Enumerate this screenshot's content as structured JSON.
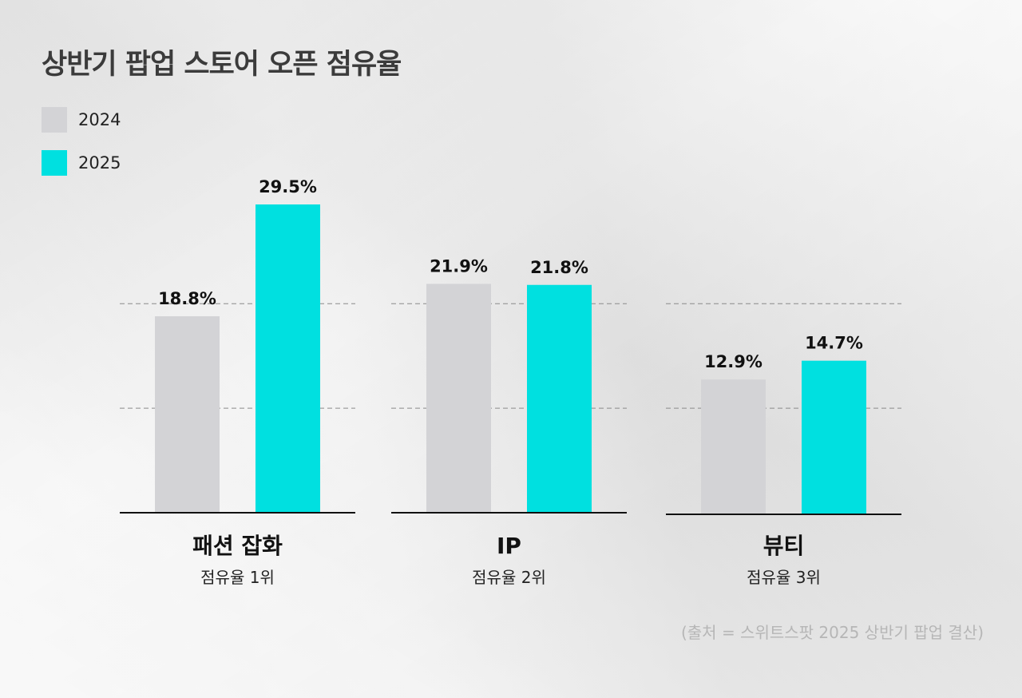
{
  "title": "상반기 팝업 스토어 오픈 점유율",
  "legend": [
    {
      "label": "2024",
      "color": "#d3d3d6"
    },
    {
      "label": "2025",
      "color": "#00e0e0"
    }
  ],
  "source": "(출처 = 스위트스팟 2025 상반기 팝업 결산)",
  "chart_data": {
    "type": "bar",
    "title": "상반기 팝업 스토어 오픈 점유율",
    "categories": [
      "패션 잡화",
      "IP",
      "뷰티"
    ],
    "subtitles": [
      "점유율 1위",
      "점유율 2위",
      "점유율 3위"
    ],
    "series": [
      {
        "name": "2024",
        "values": [
          18.8,
          21.9,
          12.9
        ],
        "labels": [
          "18.8%",
          "21.9%",
          "12.9%"
        ],
        "color": "#d3d3d6"
      },
      {
        "name": "2025",
        "values": [
          29.5,
          21.8,
          14.7
        ],
        "labels": [
          "29.5%",
          "21.8%",
          "14.7%"
        ],
        "color": "#00e0e0"
      }
    ],
    "unit": "%",
    "ylim": [
      0,
      29.5
    ],
    "gridlines": [
      10,
      20
    ],
    "xlabel": "",
    "ylabel": ""
  }
}
